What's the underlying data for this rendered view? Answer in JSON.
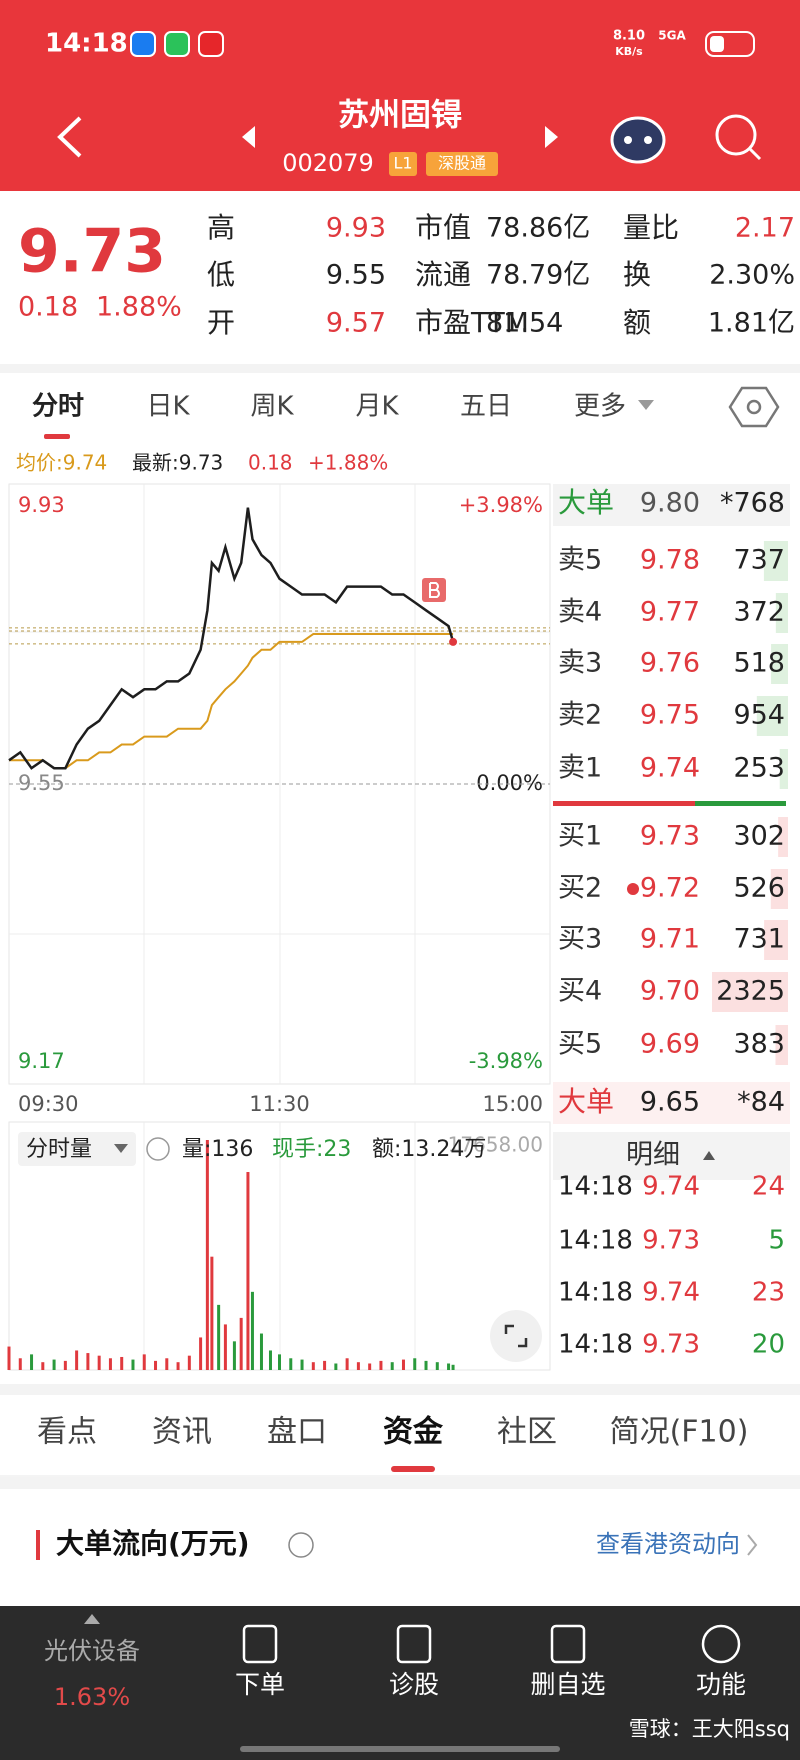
{
  "status_bar": {
    "time": "14:18",
    "net_speed": "8.10",
    "net_unit": "KB/s",
    "network": "5GA"
  },
  "header": {
    "title": "苏州固锝",
    "code": "002079",
    "level": "L1",
    "connect": "深股通"
  },
  "quote": {
    "price": "9.73",
    "change": "0.18",
    "change_pct": "1.88%",
    "stats": [
      [
        {
          "label": "高",
          "value": "9.93",
          "color": "#e0393e"
        },
        {
          "label": "市值",
          "value": "78.86亿",
          "color": "#222222"
        },
        {
          "label": "量比",
          "value": "2.17",
          "color": "#e0393e"
        }
      ],
      [
        {
          "label": "低",
          "value": "9.55",
          "color": "#222222"
        },
        {
          "label": "流通",
          "value": "78.79亿",
          "color": "#222222"
        },
        {
          "label": "换",
          "value": "2.30%",
          "color": "#222222"
        }
      ],
      [
        {
          "label": "开",
          "value": "9.57",
          "color": "#e0393e"
        },
        {
          "label": "市盈TTM",
          "value": "81.54",
          "color": "#222222"
        },
        {
          "label": "额",
          "value": "1.81亿",
          "color": "#222222"
        }
      ]
    ]
  },
  "tabs": [
    "分时",
    "日K",
    "周K",
    "月K",
    "五日",
    "更多"
  ],
  "chart_info": {
    "avg": "均价:9.74",
    "latest": "最新:9.73",
    "change": "0.18",
    "change_pct": "+1.88%"
  },
  "chart_data": [
    {
      "type": "line",
      "x": [
        0,
        5,
        10,
        15,
        20,
        25,
        30,
        35,
        40,
        45,
        50,
        55,
        60,
        65,
        70,
        75,
        80,
        85,
        88,
        90,
        93,
        96,
        100,
        103,
        106,
        108,
        112,
        116,
        120,
        125,
        130,
        135,
        140,
        145,
        150,
        155,
        160,
        165,
        170,
        175,
        180,
        185,
        190,
        195,
        197
      ],
      "series": [
        {
          "color": "#1e1e1e",
          "values": [
            9.58,
            9.59,
            9.57,
            9.58,
            9.57,
            9.57,
            9.6,
            9.62,
            9.63,
            9.65,
            9.67,
            9.66,
            9.67,
            9.67,
            9.68,
            9.68,
            9.69,
            9.72,
            9.77,
            9.83,
            9.82,
            9.85,
            9.81,
            9.83,
            9.9,
            9.86,
            9.84,
            9.83,
            9.81,
            9.8,
            9.79,
            9.79,
            9.79,
            9.78,
            9.8,
            9.8,
            9.8,
            9.8,
            9.79,
            9.79,
            9.78,
            9.77,
            9.76,
            9.75,
            9.73
          ]
        },
        {
          "color": "#d99a1c",
          "values": [
            9.58,
            9.58,
            9.58,
            9.58,
            9.57,
            9.57,
            9.58,
            9.58,
            9.59,
            9.59,
            9.6,
            9.6,
            9.61,
            9.61,
            9.61,
            9.62,
            9.62,
            9.62,
            9.63,
            9.65,
            9.66,
            9.67,
            9.68,
            9.69,
            9.7,
            9.71,
            9.72,
            9.72,
            9.73,
            9.73,
            9.73,
            9.74,
            9.74,
            9.74,
            9.74,
            9.74,
            9.74,
            9.74,
            9.74,
            9.74,
            9.74,
            9.74,
            9.74,
            9.74,
            9.74
          ]
        }
      ],
      "xlim": [
        0,
        240
      ],
      "xticks": [
        {
          "value": 0,
          "label": "09:30"
        },
        {
          "value": 120,
          "label": "11:30"
        },
        {
          "value": 240,
          "label": "15:00"
        }
      ],
      "ylim": [
        9.17,
        9.93
      ],
      "yticks": [
        9.93,
        9.55,
        9.17
      ],
      "y2lim": [
        -3.98,
        3.98
      ],
      "y2ticks": [
        {
          "value": 3.98,
          "label": "+3.98%"
        },
        {
          "value": 0,
          "label": "0.00%"
        },
        {
          "value": -3.98,
          "label": "-3.98%"
        }
      ]
    },
    {
      "type": "bar",
      "title": "分时量",
      "x": [
        0,
        5,
        10,
        15,
        20,
        25,
        30,
        35,
        40,
        45,
        50,
        55,
        60,
        65,
        70,
        75,
        80,
        85,
        88,
        90,
        93,
        96,
        100,
        103,
        106,
        108,
        112,
        116,
        120,
        125,
        130,
        135,
        140,
        145,
        150,
        155,
        160,
        165,
        170,
        175,
        180,
        185,
        190,
        195,
        197
      ],
      "values": [
        1800,
        900,
        1200,
        600,
        800,
        700,
        1500,
        1300,
        1100,
        900,
        1000,
        800,
        1200,
        700,
        900,
        600,
        1100,
        2500,
        17658,
        8700,
        5000,
        3500,
        2200,
        4000,
        15200,
        6000,
        2800,
        1500,
        1200,
        900,
        800,
        600,
        700,
        500,
        900,
        600,
        500,
        700,
        600,
        800,
        900,
        700,
        600,
        500,
        400
      ],
      "up_color": "#e0393e",
      "down_color": "#2a9a3c",
      "xlim": [
        0,
        240
      ],
      "ylim": [
        0,
        17658
      ],
      "yticks": [
        {
          "value": 17658,
          "label": "17658.00"
        }
      ]
    }
  ],
  "volume_info": {
    "volume": "量:136",
    "hand": "现手:23",
    "amount": "额:13.24万"
  },
  "order_book": {
    "big_top": {
      "label": "大单",
      "price": "9.80",
      "volume": "*768"
    },
    "asks": [
      {
        "label": "卖5",
        "price": "9.78",
        "volume": 737
      },
      {
        "label": "卖4",
        "price": "9.77",
        "volume": 372
      },
      {
        "label": "卖3",
        "price": "9.76",
        "volume": 518
      },
      {
        "label": "卖2",
        "price": "9.75",
        "volume": 954
      },
      {
        "label": "卖1",
        "price": "9.74",
        "volume": 253
      }
    ],
    "bids": [
      {
        "label": "买1",
        "price": "9.73",
        "volume": 302
      },
      {
        "label": "买2",
        "price": "9.72",
        "volume": 526
      },
      {
        "label": "买3",
        "price": "9.71",
        "volume": 731
      },
      {
        "label": "买4",
        "price": "9.70",
        "volume": 2325
      },
      {
        "label": "买5",
        "price": "9.69",
        "volume": 383
      }
    ],
    "big_bottom": {
      "label": "大单",
      "price": "9.65",
      "volume": "*84"
    },
    "detail_title": "明细",
    "trades": [
      {
        "time": "14:18",
        "price": "9.74",
        "volume": 24,
        "color": "#e0393e"
      },
      {
        "time": "14:18",
        "price": "9.73",
        "volume": 5,
        "color": "#2a9a3c"
      },
      {
        "time": "14:18",
        "price": "9.74",
        "volume": 23,
        "color": "#e0393e"
      },
      {
        "time": "14:18",
        "price": "9.73",
        "volume": 20,
        "color": "#2a9a3c"
      }
    ]
  },
  "bottom_tabs": {
    "items": [
      "看点",
      "资讯",
      "盘口",
      "资金",
      "社区",
      "简况(F10)"
    ],
    "active": 3
  },
  "section": {
    "title": "大单流向(万元)",
    "link": "查看港资动向"
  },
  "bottom_nav": {
    "sector": "光伏设备",
    "sector_pct": "1.63%",
    "items": [
      "下单",
      "诊股",
      "删自选",
      "功能"
    ]
  },
  "watermark": "雪球：王大阳ssq"
}
